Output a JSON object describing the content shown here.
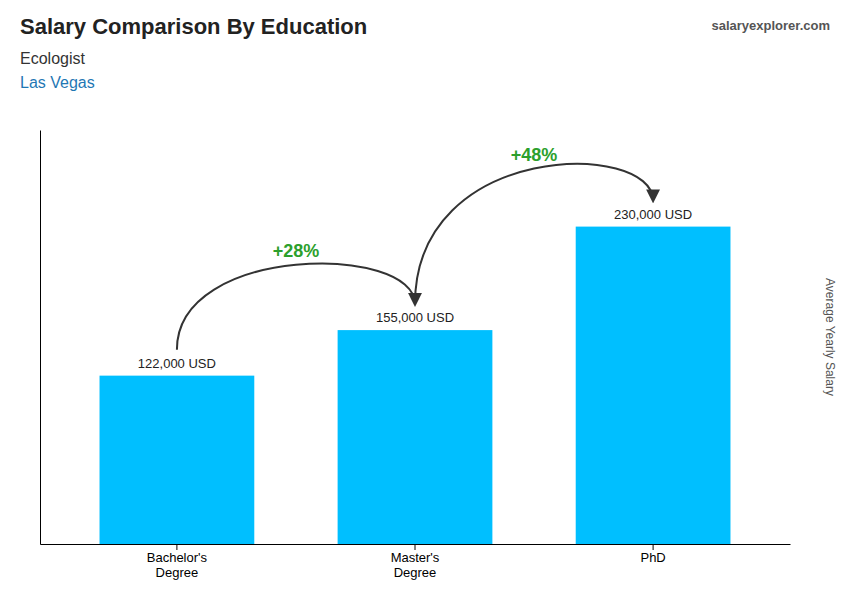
{
  "chart_data": {
    "type": "bar",
    "title": "Salary Comparison By Education",
    "subtitle": [
      "Ecologist",
      "Las Vegas"
    ],
    "ylabel": "Average Yearly Salary",
    "categories": [
      "Bachelor's\nDegree",
      "Master's\nDegree",
      "PhD"
    ],
    "values": [
      122000,
      155000,
      230000
    ],
    "value_labels": [
      "122,000 USD",
      "155,000 USD",
      "230,000 USD"
    ],
    "data_labels": true,
    "color": "#00BFFF",
    "ylim": [
      0,
      300000
    ],
    "tick_labels": "x",
    "grid": false,
    "annotations": [
      "+28%",
      "+48%",
      "salaryexplorer.com"
    ]
  }
}
